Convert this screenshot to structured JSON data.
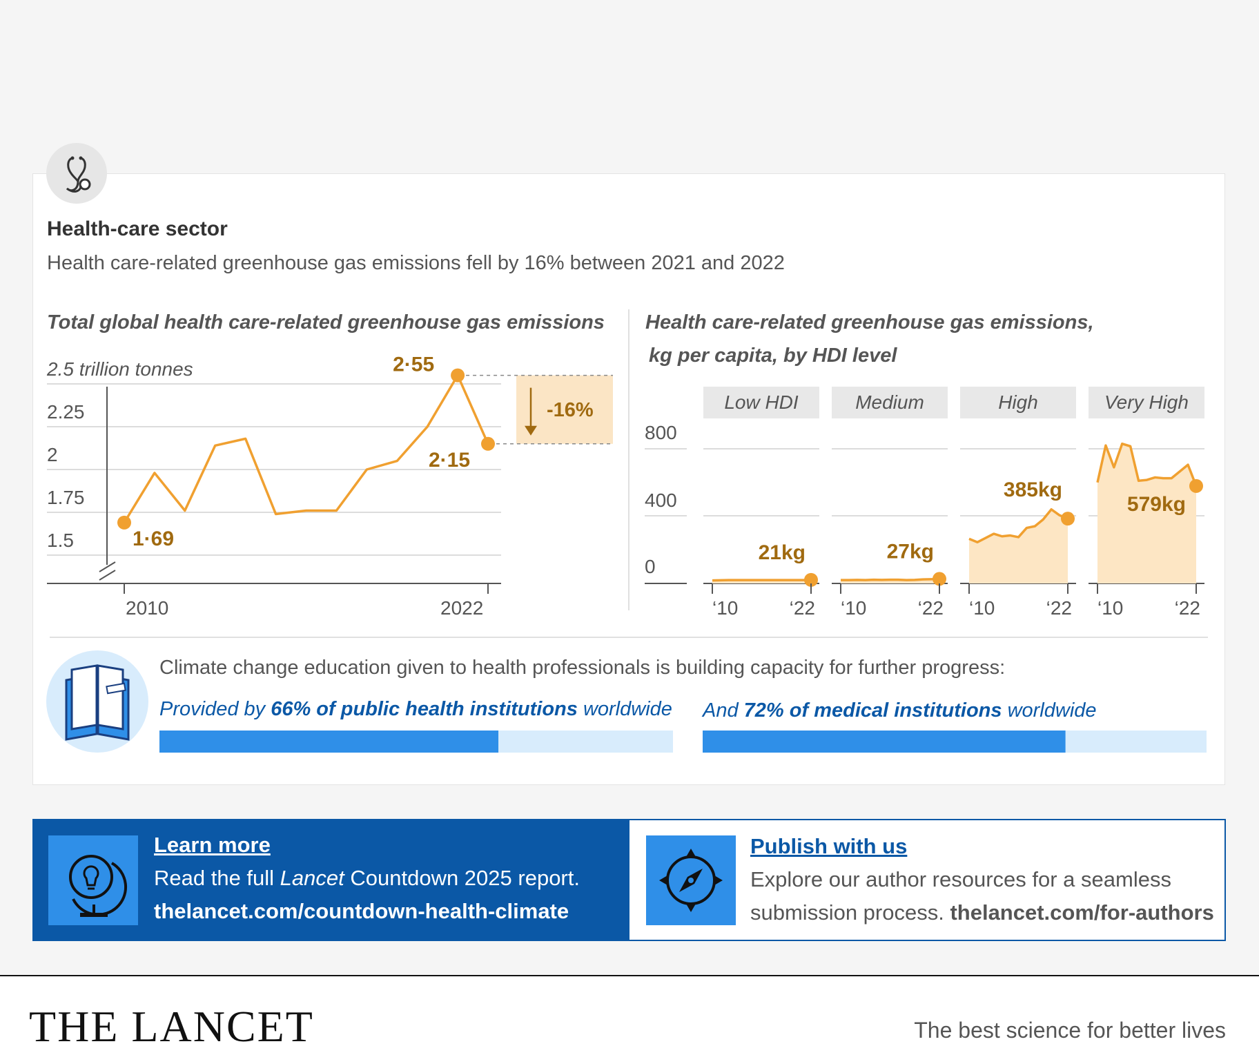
{
  "header": {
    "icon": "stethoscope-icon",
    "title": "Health-care sector",
    "subtitle": "Health care-related greenhouse gas emissions fell by 16% between 2021 and 2022"
  },
  "chart_data": [
    {
      "type": "line",
      "title": "Total global health care-related greenhouse gas emissions",
      "ylabel": "2.5 trillion tonnes",
      "yticks": [
        "2.25",
        "2",
        "1.75",
        "1.5"
      ],
      "ylim": [
        1.25,
        2.5
      ],
      "xticks": [
        "2010",
        "2022"
      ],
      "x": [
        2010,
        2011,
        2012,
        2013,
        2014,
        2015,
        2016,
        2017,
        2018,
        2019,
        2020,
        2021,
        2022
      ],
      "series": [
        {
          "values": [
            1.69,
            1.98,
            1.76,
            2.14,
            2.18,
            1.74,
            1.76,
            1.76,
            2.0,
            2.05,
            2.25,
            2.55,
            2.15
          ]
        }
      ],
      "labels": {
        "start": "1·69",
        "peak": "2·55",
        "end": "2·15"
      },
      "change_label": "-16%",
      "color": "#f0a030",
      "label_color": "#a06a10"
    },
    {
      "type": "area",
      "title_line1": "Health care-related greenhouse gas emissions,",
      "title_line2": "kg per capita, by HDI level",
      "ylim": [
        0,
        800
      ],
      "yticks": [
        "800",
        "400",
        "0"
      ],
      "xticks": [
        "‘10",
        "‘22"
      ],
      "x": [
        2010,
        2011,
        2012,
        2013,
        2014,
        2015,
        2016,
        2017,
        2018,
        2019,
        2020,
        2021,
        2022
      ],
      "panels": [
        {
          "name": "Low HDI",
          "values": [
            18,
            19,
            20,
            20,
            20,
            20,
            20,
            20,
            20,
            20,
            20,
            20,
            21
          ],
          "label": "21kg"
        },
        {
          "name": "Medium",
          "values": [
            20,
            20,
            21,
            20,
            22,
            21,
            22,
            22,
            20,
            21,
            24,
            25,
            27
          ],
          "label": "27kg"
        },
        {
          "name": "High",
          "values": [
            265,
            245,
            270,
            295,
            280,
            285,
            275,
            330,
            340,
            380,
            440,
            405,
            385
          ],
          "label": "385kg"
        },
        {
          "name": "Very High",
          "values": [
            600,
            820,
            690,
            830,
            815,
            610,
            615,
            630,
            625,
            625,
            665,
            705,
            579
          ],
          "label": "579kg"
        }
      ],
      "color": "#f0a030",
      "fill": "#fde6c4"
    }
  ],
  "education": {
    "icon": "book-icon",
    "intro": "Climate change education given to health professionals is building capacity for further progress:",
    "bars": [
      {
        "prefix": "Provided by ",
        "value_text": "66% of public health institutions",
        "suffix": " worldwide",
        "value": 0.66
      },
      {
        "prefix": "And ",
        "value_text": "72% of medical institutions",
        "suffix": " worldwide",
        "value": 0.72
      }
    ],
    "bar_color": "#2f8fe8",
    "track_color": "#d8ecfc"
  },
  "learn_more": {
    "icon": "globe-lightbulb-icon",
    "heading": "Learn more",
    "text_before": "Read the full ",
    "text_italic": "Lancet",
    "text_after": " Countdown 2025 report.",
    "url": "thelancet.com/countdown-health-climate"
  },
  "publish": {
    "icon": "compass-icon",
    "heading": "Publish with us",
    "line1": "Explore our author resources for a seamless",
    "line2": "submission process. ",
    "url": "thelancet.com/for-authors"
  },
  "footer": {
    "logo": "THE LANCET",
    "tagline": "The best science for better lives"
  }
}
